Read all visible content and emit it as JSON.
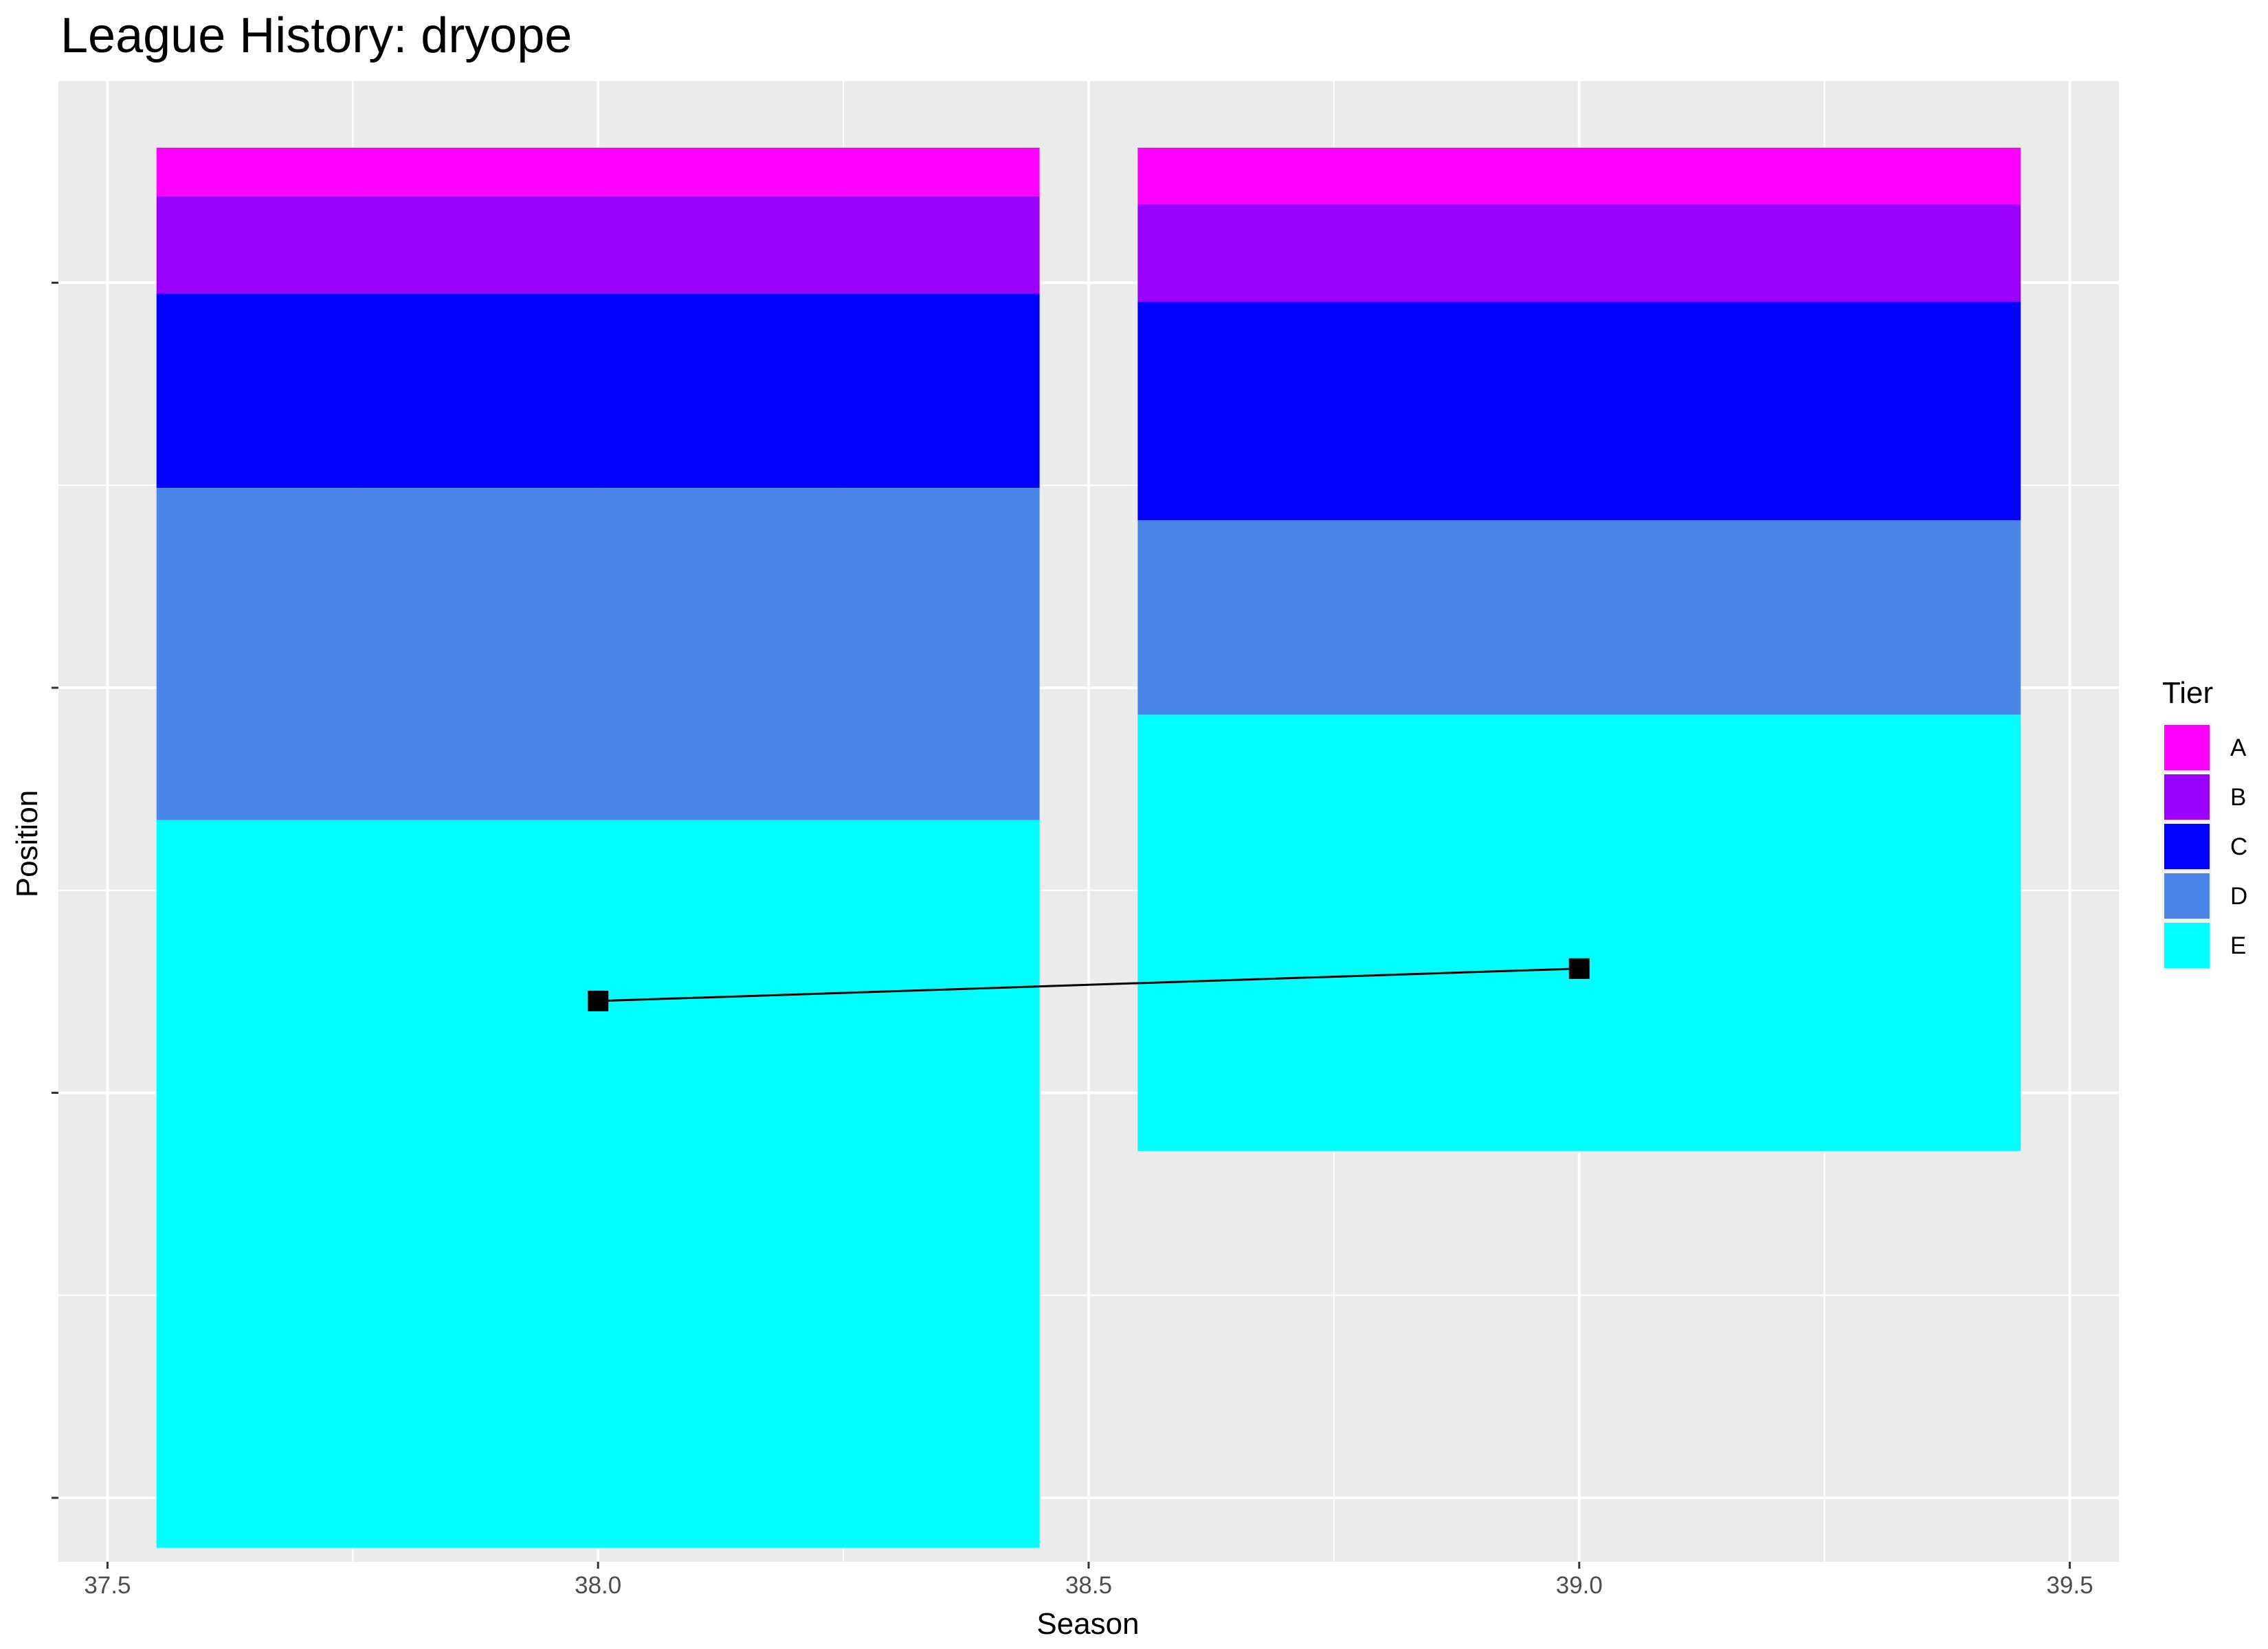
{
  "chart_data": {
    "type": "bar",
    "title": "League History: dryope",
    "xlabel": "Season",
    "ylabel": "Position",
    "xlim": [
      37.45,
      39.55
    ],
    "x_ticks": [
      37.5,
      38.0,
      38.5,
      39.0,
      39.5
    ],
    "x_tick_labels": [
      "37.5",
      "38.0",
      "38.5",
      "39.0",
      "39.5"
    ],
    "ylim": [
      0,
      1
    ],
    "y_axis_reversed": true,
    "y_ticks": [
      0.1,
      0.4,
      0.7,
      1.0
    ],
    "y_tick_labels": [
      "",
      "",
      "",
      ""
    ],
    "grid": true,
    "stacked": true,
    "bar_width": 0.9,
    "legend": {
      "title": "Tier",
      "position": "right"
    },
    "tier_colors": {
      "A": "#FF00FF",
      "B": "#9900FF",
      "C": "#0000FF",
      "D": "#4A86E8",
      "E": "#00FFFF"
    },
    "series": [
      {
        "name": "A",
        "values": [
          0.036,
          0.042
        ]
      },
      {
        "name": "B",
        "values": [
          0.072,
          0.072
        ]
      },
      {
        "name": "C",
        "values": [
          0.144,
          0.162
        ]
      },
      {
        "name": "D",
        "values": [
          0.246,
          0.144
        ]
      },
      {
        "name": "E",
        "values": [
          0.539,
          0.323
        ]
      }
    ],
    "categories": [
      38.0,
      39.0
    ],
    "position_line": {
      "x": [
        38.0,
        39.0
      ],
      "y": [
        0.632,
        0.608
      ],
      "marker": "square",
      "color": "#000000"
    }
  }
}
